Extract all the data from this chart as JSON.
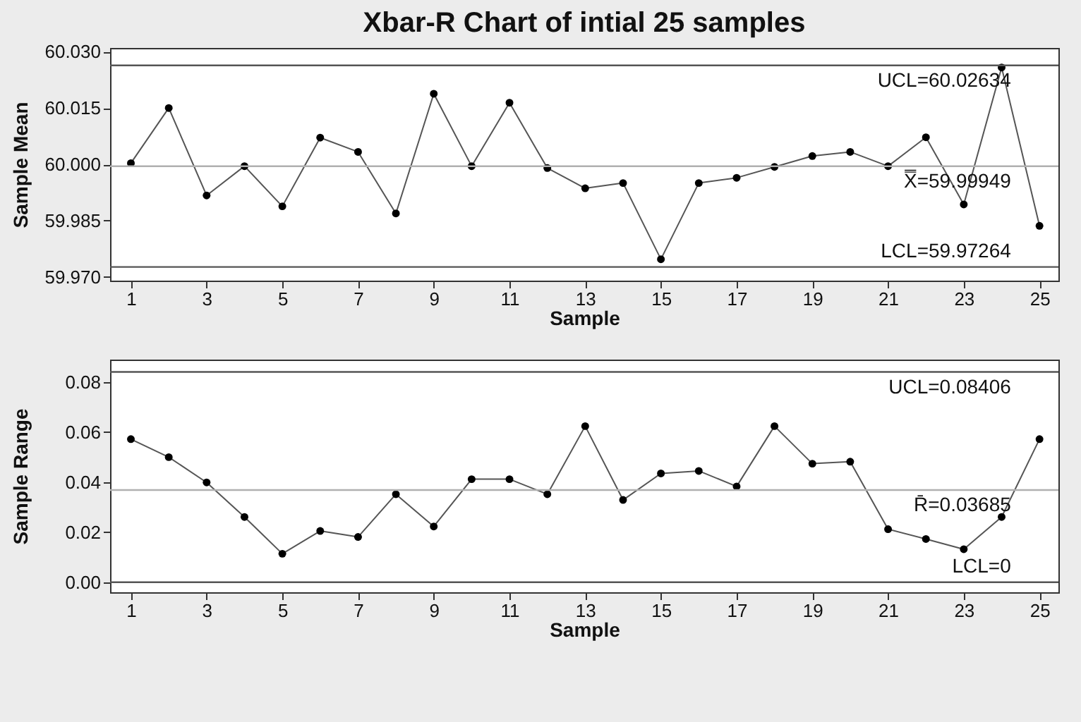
{
  "chart_data": [
    {
      "type": "line",
      "title": "Xbar-R Chart of intial 25 samples",
      "xlabel": "Sample",
      "ylabel": "Sample Mean",
      "x": [
        1,
        2,
        3,
        4,
        5,
        6,
        7,
        8,
        9,
        10,
        11,
        12,
        13,
        14,
        15,
        16,
        17,
        18,
        19,
        20,
        21,
        22,
        23,
        24,
        25
      ],
      "series": [
        {
          "color": "#555555",
          "values": [
            60.0003,
            60.015,
            59.9917,
            59.9995,
            59.9888,
            60.0071,
            60.0033,
            59.9869,
            60.0188,
            59.9995,
            60.0164,
            59.999,
            59.9936,
            59.995,
            59.9747,
            59.995,
            59.9964,
            59.9993,
            60.0022,
            60.0033,
            59.9995,
            60.0072,
            59.9893,
            60.0258,
            59.9836
          ]
        }
      ],
      "xlim": [
        0.45,
        25.5
      ],
      "xticks": [
        1,
        3,
        5,
        7,
        9,
        11,
        13,
        15,
        17,
        19,
        21,
        23,
        25
      ],
      "ylim": [
        59.969,
        60.031
      ],
      "yticks": [
        {
          "value": 59.97,
          "label": "59.970"
        },
        {
          "value": 59.985,
          "label": "59.985"
        },
        {
          "value": 60,
          "label": "60.000"
        },
        {
          "value": 60.015,
          "label": "60.015"
        },
        {
          "value": 60.03,
          "label": "60.030"
        }
      ],
      "ref_lines": [
        {
          "axis": "y",
          "value": 60.02634,
          "label": "UCL=60.02634",
          "color": "#555555"
        },
        {
          "axis": "y",
          "value": 59.99949,
          "label": "X̿=59.99949",
          "color": "#b0b0b0"
        },
        {
          "axis": "y",
          "value": 59.97264,
          "label": "LCL=59.97264",
          "color": "#555555"
        }
      ],
      "grid": false,
      "marker": "circle",
      "line_style": "solid"
    },
    {
      "type": "line",
      "xlabel": "Sample",
      "ylabel": "Sample Range",
      "x": [
        1,
        2,
        3,
        4,
        5,
        6,
        7,
        8,
        9,
        10,
        11,
        12,
        13,
        14,
        15,
        16,
        17,
        18,
        19,
        20,
        21,
        22,
        23,
        24,
        25
      ],
      "series": [
        {
          "color": "#555555",
          "values": [
            0.0572,
            0.05,
            0.0399,
            0.0261,
            0.0114,
            0.0205,
            0.0181,
            0.0352,
            0.0223,
            0.0412,
            0.0412,
            0.0352,
            0.0624,
            0.0329,
            0.0435,
            0.0445,
            0.0383,
            0.0624,
            0.0474,
            0.0482,
            0.0212,
            0.0173,
            0.0132,
            0.0261,
            0.0572
          ]
        }
      ],
      "xlim": [
        0.45,
        25.5
      ],
      "xticks": [
        1,
        3,
        5,
        7,
        9,
        11,
        13,
        15,
        17,
        19,
        21,
        23,
        25
      ],
      "ylim": [
        -0.004,
        0.089
      ],
      "yticks": [
        {
          "value": 0,
          "label": "0.00"
        },
        {
          "value": 0.02,
          "label": "0.02"
        },
        {
          "value": 0.04,
          "label": "0.04"
        },
        {
          "value": 0.06,
          "label": "0.06"
        },
        {
          "value": 0.08,
          "label": "0.08"
        }
      ],
      "ref_lines": [
        {
          "axis": "y",
          "value": 0.08406,
          "label": "UCL=0.08406",
          "color": "#555555"
        },
        {
          "axis": "y",
          "value": 0.03685,
          "label": "R̄=0.03685",
          "color": "#b0b0b0"
        },
        {
          "axis": "y",
          "value": 0,
          "label": "LCL=0",
          "color": "#555555"
        }
      ],
      "grid": false,
      "marker": "circle",
      "line_style": "solid"
    }
  ]
}
